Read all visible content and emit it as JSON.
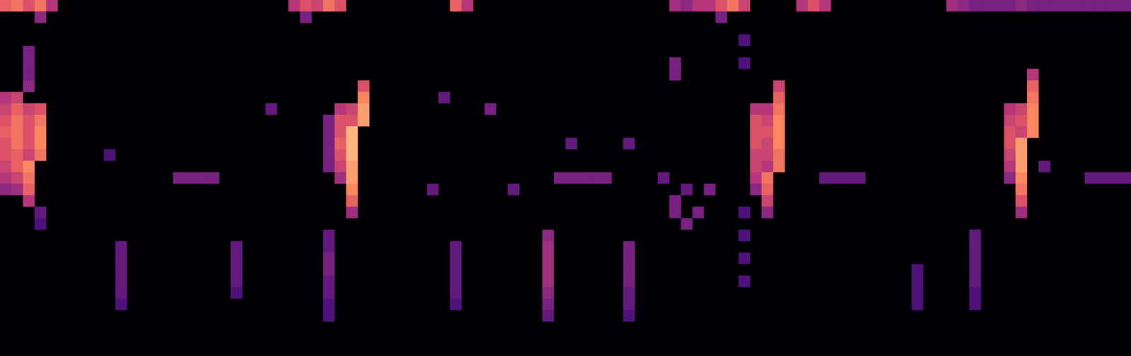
{
  "chart_data": {
    "type": "heatmap",
    "tick_labels": false,
    "xlim": [
      0,
      98
    ],
    "ylim": [
      0,
      31
    ],
    "color_range": [
      0,
      1
    ],
    "cells": [
      [
        0,
        0,
        0.65
      ],
      [
        1,
        0,
        0.7
      ],
      [
        2,
        0,
        0.6
      ],
      [
        3,
        0,
        0.7
      ],
      [
        4,
        0,
        0.5
      ],
      [
        3,
        1,
        0.4
      ],
      [
        25,
        0,
        0.5
      ],
      [
        26,
        0,
        0.6
      ],
      [
        27,
        0,
        0.55
      ],
      [
        28,
        0,
        0.7
      ],
      [
        29,
        0,
        0.6
      ],
      [
        26,
        1,
        0.35
      ],
      [
        39,
        0,
        0.65
      ],
      [
        40,
        0,
        0.5
      ],
      [
        58,
        0,
        0.45
      ],
      [
        59,
        0,
        0.4
      ],
      [
        60,
        0,
        0.5
      ],
      [
        61,
        0,
        0.5
      ],
      [
        62,
        0,
        0.6
      ],
      [
        63,
        0,
        0.7
      ],
      [
        64,
        0,
        0.55
      ],
      [
        62,
        1,
        0.35
      ],
      [
        69,
        0,
        0.5
      ],
      [
        70,
        0,
        0.6
      ],
      [
        71,
        0,
        0.5
      ],
      [
        82,
        0,
        0.45
      ],
      [
        83,
        0,
        0.4
      ],
      [
        84,
        0,
        0.35
      ],
      [
        85,
        0,
        0.35
      ],
      [
        86,
        0,
        0.35
      ],
      [
        87,
        0,
        0.35
      ],
      [
        88,
        0,
        0.4
      ],
      [
        89,
        0,
        0.35
      ],
      [
        90,
        0,
        0.35
      ],
      [
        91,
        0,
        0.35
      ],
      [
        92,
        0,
        0.35
      ],
      [
        93,
        0,
        0.35
      ],
      [
        94,
        0,
        0.35
      ],
      [
        95,
        0,
        0.35
      ],
      [
        96,
        0,
        0.35
      ],
      [
        97,
        0,
        0.35
      ],
      [
        2,
        4,
        0.35
      ],
      [
        2,
        5,
        0.35
      ],
      [
        2,
        6,
        0.35
      ],
      [
        2,
        7,
        0.4
      ],
      [
        0,
        8,
        0.5
      ],
      [
        0,
        9,
        0.55
      ],
      [
        0,
        10,
        0.6
      ],
      [
        0,
        11,
        0.65
      ],
      [
        0,
        12,
        0.6
      ],
      [
        0,
        13,
        0.6
      ],
      [
        0,
        14,
        0.55
      ],
      [
        0,
        15,
        0.5
      ],
      [
        0,
        16,
        0.4
      ],
      [
        1,
        8,
        0.55
      ],
      [
        1,
        9,
        0.65
      ],
      [
        1,
        10,
        0.7
      ],
      [
        1,
        11,
        0.7
      ],
      [
        1,
        12,
        0.7
      ],
      [
        1,
        13,
        0.65
      ],
      [
        1,
        14,
        0.65
      ],
      [
        1,
        15,
        0.55
      ],
      [
        1,
        16,
        0.45
      ],
      [
        2,
        9,
        0.55
      ],
      [
        2,
        10,
        0.6
      ],
      [
        2,
        11,
        0.6
      ],
      [
        2,
        12,
        0.6
      ],
      [
        2,
        13,
        0.55
      ],
      [
        3,
        9,
        0.6
      ],
      [
        3,
        10,
        0.7
      ],
      [
        3,
        11,
        0.75
      ],
      [
        3,
        12,
        0.75
      ],
      [
        3,
        13,
        0.7
      ],
      [
        2,
        14,
        0.75
      ],
      [
        2,
        15,
        0.7
      ],
      [
        2,
        16,
        0.65
      ],
      [
        2,
        17,
        0.5
      ],
      [
        3,
        18,
        0.3
      ],
      [
        3,
        19,
        0.25
      ],
      [
        28,
        10,
        0.35
      ],
      [
        28,
        11,
        0.35
      ],
      [
        28,
        12,
        0.35
      ],
      [
        28,
        13,
        0.35
      ],
      [
        28,
        14,
        0.35
      ],
      [
        29,
        9,
        0.5
      ],
      [
        29,
        10,
        0.6
      ],
      [
        29,
        11,
        0.6
      ],
      [
        29,
        12,
        0.65
      ],
      [
        29,
        13,
        0.6
      ],
      [
        29,
        14,
        0.55
      ],
      [
        29,
        15,
        0.45
      ],
      [
        30,
        9,
        0.55
      ],
      [
        30,
        10,
        0.6
      ],
      [
        31,
        7,
        0.6
      ],
      [
        31,
        8,
        0.75
      ],
      [
        31,
        9,
        0.8
      ],
      [
        31,
        10,
        0.8
      ],
      [
        30,
        11,
        0.85
      ],
      [
        30,
        12,
        0.85
      ],
      [
        30,
        13,
        0.85
      ],
      [
        30,
        14,
        0.8
      ],
      [
        30,
        15,
        0.8
      ],
      [
        30,
        16,
        0.75
      ],
      [
        30,
        17,
        0.65
      ],
      [
        30,
        18,
        0.45
      ],
      [
        65,
        9,
        0.5
      ],
      [
        65,
        10,
        0.6
      ],
      [
        65,
        11,
        0.6
      ],
      [
        65,
        12,
        0.6
      ],
      [
        65,
        13,
        0.55
      ],
      [
        65,
        14,
        0.55
      ],
      [
        65,
        15,
        0.5
      ],
      [
        65,
        16,
        0.4
      ],
      [
        66,
        9,
        0.5
      ],
      [
        66,
        10,
        0.55
      ],
      [
        66,
        11,
        0.6
      ],
      [
        66,
        12,
        0.55
      ],
      [
        66,
        13,
        0.55
      ],
      [
        66,
        14,
        0.5
      ],
      [
        67,
        7,
        0.55
      ],
      [
        67,
        8,
        0.65
      ],
      [
        67,
        9,
        0.7
      ],
      [
        67,
        10,
        0.75
      ],
      [
        67,
        11,
        0.75
      ],
      [
        67,
        12,
        0.75
      ],
      [
        67,
        13,
        0.7
      ],
      [
        67,
        14,
        0.7
      ],
      [
        66,
        15,
        0.7
      ],
      [
        66,
        16,
        0.65
      ],
      [
        66,
        17,
        0.55
      ],
      [
        66,
        18,
        0.4
      ],
      [
        87,
        9,
        0.5
      ],
      [
        87,
        10,
        0.55
      ],
      [
        87,
        11,
        0.6
      ],
      [
        87,
        12,
        0.6
      ],
      [
        87,
        13,
        0.55
      ],
      [
        87,
        14,
        0.5
      ],
      [
        87,
        15,
        0.4
      ],
      [
        88,
        9,
        0.55
      ],
      [
        88,
        10,
        0.6
      ],
      [
        88,
        11,
        0.55
      ],
      [
        89,
        6,
        0.5
      ],
      [
        89,
        7,
        0.65
      ],
      [
        89,
        8,
        0.7
      ],
      [
        89,
        9,
        0.75
      ],
      [
        89,
        10,
        0.75
      ],
      [
        89,
        11,
        0.75
      ],
      [
        88,
        12,
        0.8
      ],
      [
        88,
        13,
        0.8
      ],
      [
        88,
        14,
        0.8
      ],
      [
        88,
        15,
        0.75
      ],
      [
        88,
        16,
        0.7
      ],
      [
        88,
        17,
        0.6
      ],
      [
        88,
        18,
        0.45
      ],
      [
        90,
        14,
        0.3
      ],
      [
        10,
        21,
        0.3
      ],
      [
        10,
        22,
        0.3
      ],
      [
        10,
        23,
        0.3
      ],
      [
        10,
        24,
        0.3
      ],
      [
        10,
        25,
        0.3
      ],
      [
        10,
        26,
        0.25
      ],
      [
        20,
        21,
        0.3
      ],
      [
        20,
        22,
        0.3
      ],
      [
        20,
        23,
        0.3
      ],
      [
        20,
        24,
        0.3
      ],
      [
        20,
        25,
        0.25
      ],
      [
        28,
        20,
        0.3
      ],
      [
        28,
        21,
        0.3
      ],
      [
        28,
        22,
        0.35
      ],
      [
        28,
        23,
        0.35
      ],
      [
        28,
        24,
        0.3
      ],
      [
        28,
        25,
        0.3
      ],
      [
        28,
        26,
        0.25
      ],
      [
        28,
        27,
        0.25
      ],
      [
        39,
        21,
        0.3
      ],
      [
        39,
        22,
        0.3
      ],
      [
        39,
        23,
        0.3
      ],
      [
        39,
        24,
        0.3
      ],
      [
        39,
        25,
        0.3
      ],
      [
        39,
        26,
        0.25
      ],
      [
        47,
        20,
        0.4
      ],
      [
        47,
        21,
        0.45
      ],
      [
        47,
        22,
        0.45
      ],
      [
        47,
        23,
        0.45
      ],
      [
        47,
        24,
        0.45
      ],
      [
        47,
        25,
        0.4
      ],
      [
        47,
        26,
        0.35
      ],
      [
        47,
        27,
        0.3
      ],
      [
        54,
        21,
        0.35
      ],
      [
        54,
        22,
        0.35
      ],
      [
        54,
        23,
        0.35
      ],
      [
        54,
        24,
        0.35
      ],
      [
        54,
        25,
        0.3
      ],
      [
        54,
        26,
        0.3
      ],
      [
        54,
        27,
        0.25
      ],
      [
        79,
        23,
        0.25
      ],
      [
        79,
        24,
        0.25
      ],
      [
        79,
        25,
        0.25
      ],
      [
        79,
        26,
        0.25
      ],
      [
        84,
        20,
        0.3
      ],
      [
        84,
        21,
        0.3
      ],
      [
        84,
        22,
        0.3
      ],
      [
        84,
        23,
        0.3
      ],
      [
        84,
        24,
        0.3
      ],
      [
        84,
        25,
        0.25
      ],
      [
        84,
        26,
        0.25
      ],
      [
        15,
        15,
        0.35
      ],
      [
        16,
        15,
        0.35
      ],
      [
        17,
        15,
        0.35
      ],
      [
        18,
        15,
        0.35
      ],
      [
        48,
        15,
        0.35
      ],
      [
        49,
        15,
        0.35
      ],
      [
        50,
        15,
        0.35
      ],
      [
        51,
        15,
        0.35
      ],
      [
        52,
        15,
        0.35
      ],
      [
        71,
        15,
        0.3
      ],
      [
        72,
        15,
        0.3
      ],
      [
        73,
        15,
        0.3
      ],
      [
        74,
        15,
        0.3
      ],
      [
        94,
        15,
        0.3
      ],
      [
        95,
        15,
        0.3
      ],
      [
        96,
        15,
        0.3
      ],
      [
        97,
        15,
        0.3
      ],
      [
        37,
        16,
        0.3
      ],
      [
        44,
        16,
        0.3
      ],
      [
        58,
        17,
        0.35
      ],
      [
        58,
        18,
        0.35
      ],
      [
        59,
        19,
        0.35
      ],
      [
        60,
        18,
        0.35
      ],
      [
        61,
        16,
        0.35
      ],
      [
        59,
        16,
        0.3
      ],
      [
        57,
        15,
        0.3
      ],
      [
        64,
        3,
        0.25
      ],
      [
        64,
        5,
        0.25
      ],
      [
        64,
        18,
        0.25
      ],
      [
        64,
        20,
        0.25
      ],
      [
        64,
        22,
        0.25
      ],
      [
        64,
        24,
        0.25
      ],
      [
        58,
        5,
        0.35
      ],
      [
        58,
        6,
        0.35
      ],
      [
        38,
        8,
        0.3
      ],
      [
        42,
        9,
        0.35
      ],
      [
        23,
        9,
        0.3
      ],
      [
        9,
        13,
        0.25
      ],
      [
        49,
        12,
        0.3
      ],
      [
        54,
        12,
        0.3
      ]
    ]
  }
}
